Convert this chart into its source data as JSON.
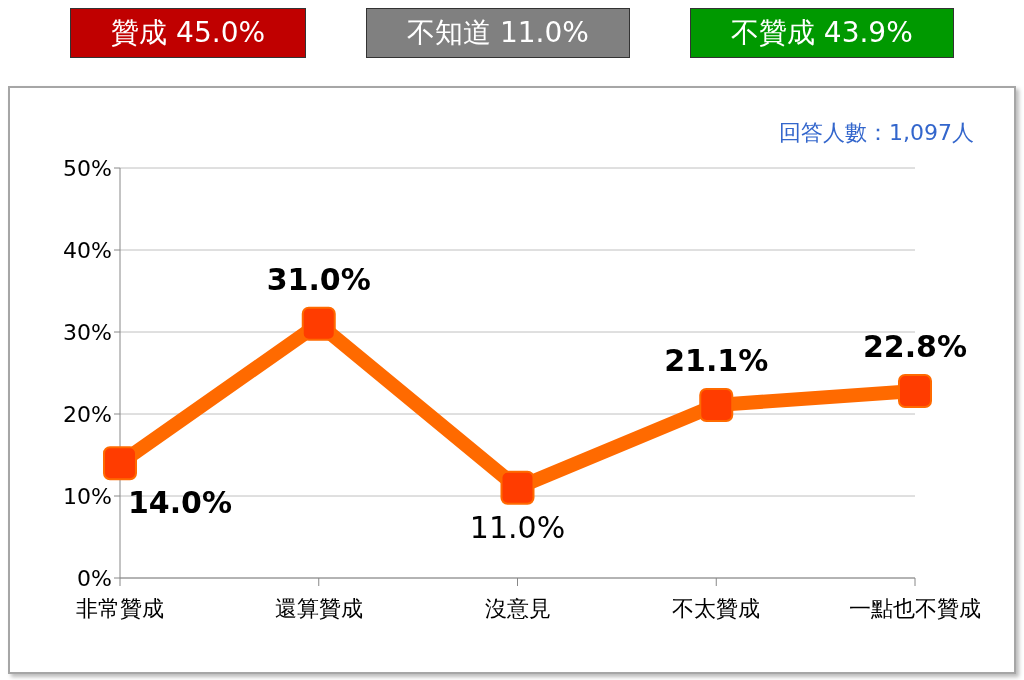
{
  "chart_data": {
    "type": "line",
    "categories": [
      "非常贊成",
      "還算贊成",
      "沒意見",
      "不太贊成",
      "一點也不贊成"
    ],
    "series": [
      {
        "color": "#ff6a00",
        "values": [
          14.0,
          31.0,
          11.0,
          21.1,
          22.8
        ],
        "value_labels": [
          "14.0%",
          "31.0%",
          "11.0%",
          "21.1%",
          "22.8%"
        ]
      }
    ],
    "ylim": [
      0,
      50
    ],
    "yticks": [
      {
        "value": 0,
        "label": "0%"
      },
      {
        "value": 10,
        "label": "10%"
      },
      {
        "value": 20,
        "label": "20%"
      },
      {
        "value": 30,
        "label": "30%"
      },
      {
        "value": 40,
        "label": "40%"
      },
      {
        "value": 50,
        "label": "50%"
      }
    ],
    "grid": "y",
    "marker": "square",
    "line_style": "solid",
    "annotations": [
      "贊成 45.0%",
      "不知道 11.0%",
      "不贊成 43.9%",
      "回答人數：1,097人"
    ]
  }
}
